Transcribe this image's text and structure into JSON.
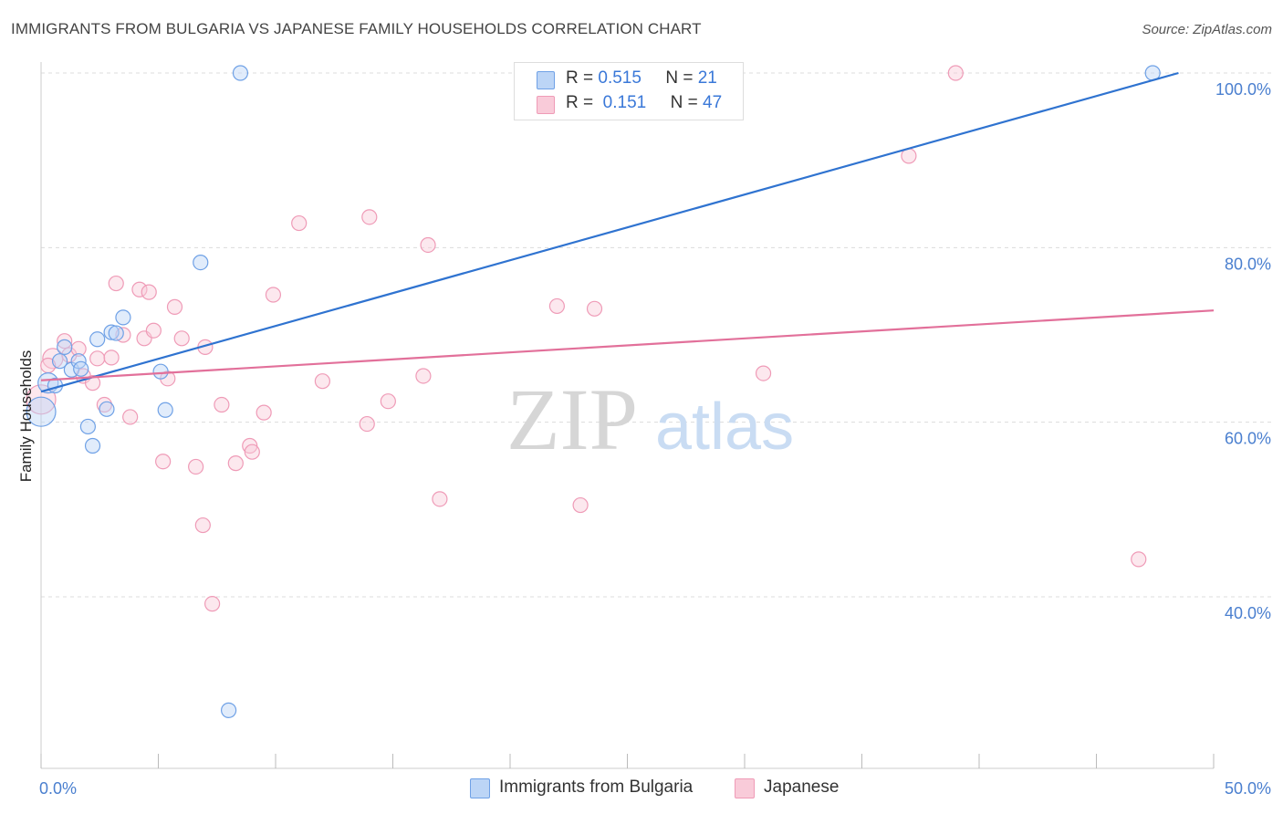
{
  "header": {
    "title": "IMMIGRANTS FROM BULGARIA VS JAPANESE FAMILY HOUSEHOLDS CORRELATION CHART",
    "source": "Source: ZipAtlas.com"
  },
  "watermark": {
    "zip": "ZIP",
    "atlas": "atlas"
  },
  "legend": {
    "rows": [
      {
        "r_label": "R =",
        "r_value": "0.515",
        "n_label": "N =",
        "n_value": "21"
      },
      {
        "r_label": "R =",
        "r_value": "0.151",
        "n_label": "N =",
        "n_value": "47"
      }
    ]
  },
  "bottom_legend": {
    "series1": "Immigrants from Bulgaria",
    "series2": "Japanese"
  },
  "chart_data": {
    "type": "scatter",
    "title": "IMMIGRANTS FROM BULGARIA VS JAPANESE FAMILY HOUSEHOLDS CORRELATION CHART",
    "xlabel": "",
    "ylabel": "Family Households",
    "xlim": [
      0,
      50
    ],
    "ylim": [
      20,
      102
    ],
    "x_tick_labels": [
      "0.0%",
      "50.0%"
    ],
    "y_ticks": [
      40,
      60,
      80,
      100
    ],
    "y_tick_labels": [
      "40.0%",
      "60.0%",
      "80.0%",
      "100.0%"
    ],
    "grid": true,
    "colors": {
      "series1": "#6fa1e6",
      "series2": "#ef9bb7",
      "line1": "#2f73d0",
      "line2": "#e2709a",
      "axis_text": "#4a7fcf"
    },
    "series": [
      {
        "name": "Immigrants from Bulgaria",
        "r": 0.515,
        "n": 21,
        "trend": [
          [
            0,
            63.5
          ],
          [
            48.5,
            100
          ]
        ],
        "points": [
          [
            0.0,
            61.2,
            16
          ],
          [
            0.3,
            64.5,
            11
          ],
          [
            0.8,
            67.0,
            8
          ],
          [
            1.0,
            68.6,
            8
          ],
          [
            1.3,
            66.0,
            8
          ],
          [
            1.6,
            67.0,
            8
          ],
          [
            1.7,
            66.1,
            8
          ],
          [
            2.0,
            59.5,
            8
          ],
          [
            2.2,
            57.3,
            8
          ],
          [
            2.4,
            69.5,
            8
          ],
          [
            2.8,
            61.5,
            8
          ],
          [
            3.0,
            70.3,
            8
          ],
          [
            3.2,
            70.2,
            8
          ],
          [
            3.5,
            72.0,
            8
          ],
          [
            5.1,
            65.8,
            8
          ],
          [
            5.3,
            61.4,
            8
          ],
          [
            6.8,
            78.3,
            8
          ],
          [
            8.5,
            100.0,
            8
          ],
          [
            8.0,
            27.0,
            8
          ],
          [
            47.4,
            100.0,
            8
          ],
          [
            0.6,
            64.2,
            8
          ]
        ]
      },
      {
        "name": "Japanese",
        "r": 0.151,
        "n": 47,
        "trend": [
          [
            0,
            64.8
          ],
          [
            50,
            72.8
          ]
        ],
        "points": [
          [
            0.0,
            62.6,
            16
          ],
          [
            0.5,
            67.3,
            11
          ],
          [
            1.0,
            69.3,
            8
          ],
          [
            1.2,
            67.7,
            8
          ],
          [
            1.6,
            68.4,
            8
          ],
          [
            1.8,
            65.3,
            8
          ],
          [
            2.2,
            64.5,
            8
          ],
          [
            2.4,
            67.3,
            8
          ],
          [
            2.7,
            62.0,
            8
          ],
          [
            3.0,
            67.4,
            8
          ],
          [
            3.2,
            75.9,
            8
          ],
          [
            3.5,
            70.0,
            8
          ],
          [
            3.8,
            60.6,
            8
          ],
          [
            4.2,
            75.2,
            8
          ],
          [
            4.4,
            69.6,
            8
          ],
          [
            4.6,
            74.9,
            8
          ],
          [
            4.8,
            70.5,
            8
          ],
          [
            5.2,
            55.5,
            8
          ],
          [
            5.4,
            65.0,
            8
          ],
          [
            5.7,
            73.2,
            8
          ],
          [
            6.0,
            69.6,
            8
          ],
          [
            6.6,
            54.9,
            8
          ],
          [
            6.9,
            48.2,
            8
          ],
          [
            7.0,
            68.6,
            8
          ],
          [
            7.3,
            39.2,
            8
          ],
          [
            7.7,
            62.0,
            8
          ],
          [
            8.3,
            55.3,
            8
          ],
          [
            8.9,
            57.3,
            8
          ],
          [
            9.0,
            56.6,
            8
          ],
          [
            9.5,
            61.1,
            8
          ],
          [
            9.9,
            74.6,
            8
          ],
          [
            11.0,
            82.8,
            8
          ],
          [
            12.0,
            64.7,
            8
          ],
          [
            13.9,
            59.8,
            8
          ],
          [
            14.0,
            83.5,
            8
          ],
          [
            14.8,
            62.4,
            8
          ],
          [
            16.3,
            65.3,
            8
          ],
          [
            16.5,
            80.3,
            8
          ],
          [
            17.0,
            51.2,
            8
          ],
          [
            22.0,
            73.3,
            8
          ],
          [
            23.0,
            50.5,
            8
          ],
          [
            23.6,
            73.0,
            8
          ],
          [
            30.8,
            65.6,
            8
          ],
          [
            37.0,
            90.5,
            8
          ],
          [
            39.0,
            100.0,
            8
          ],
          [
            46.8,
            44.3,
            8
          ],
          [
            0.3,
            66.5,
            8
          ]
        ]
      }
    ]
  }
}
